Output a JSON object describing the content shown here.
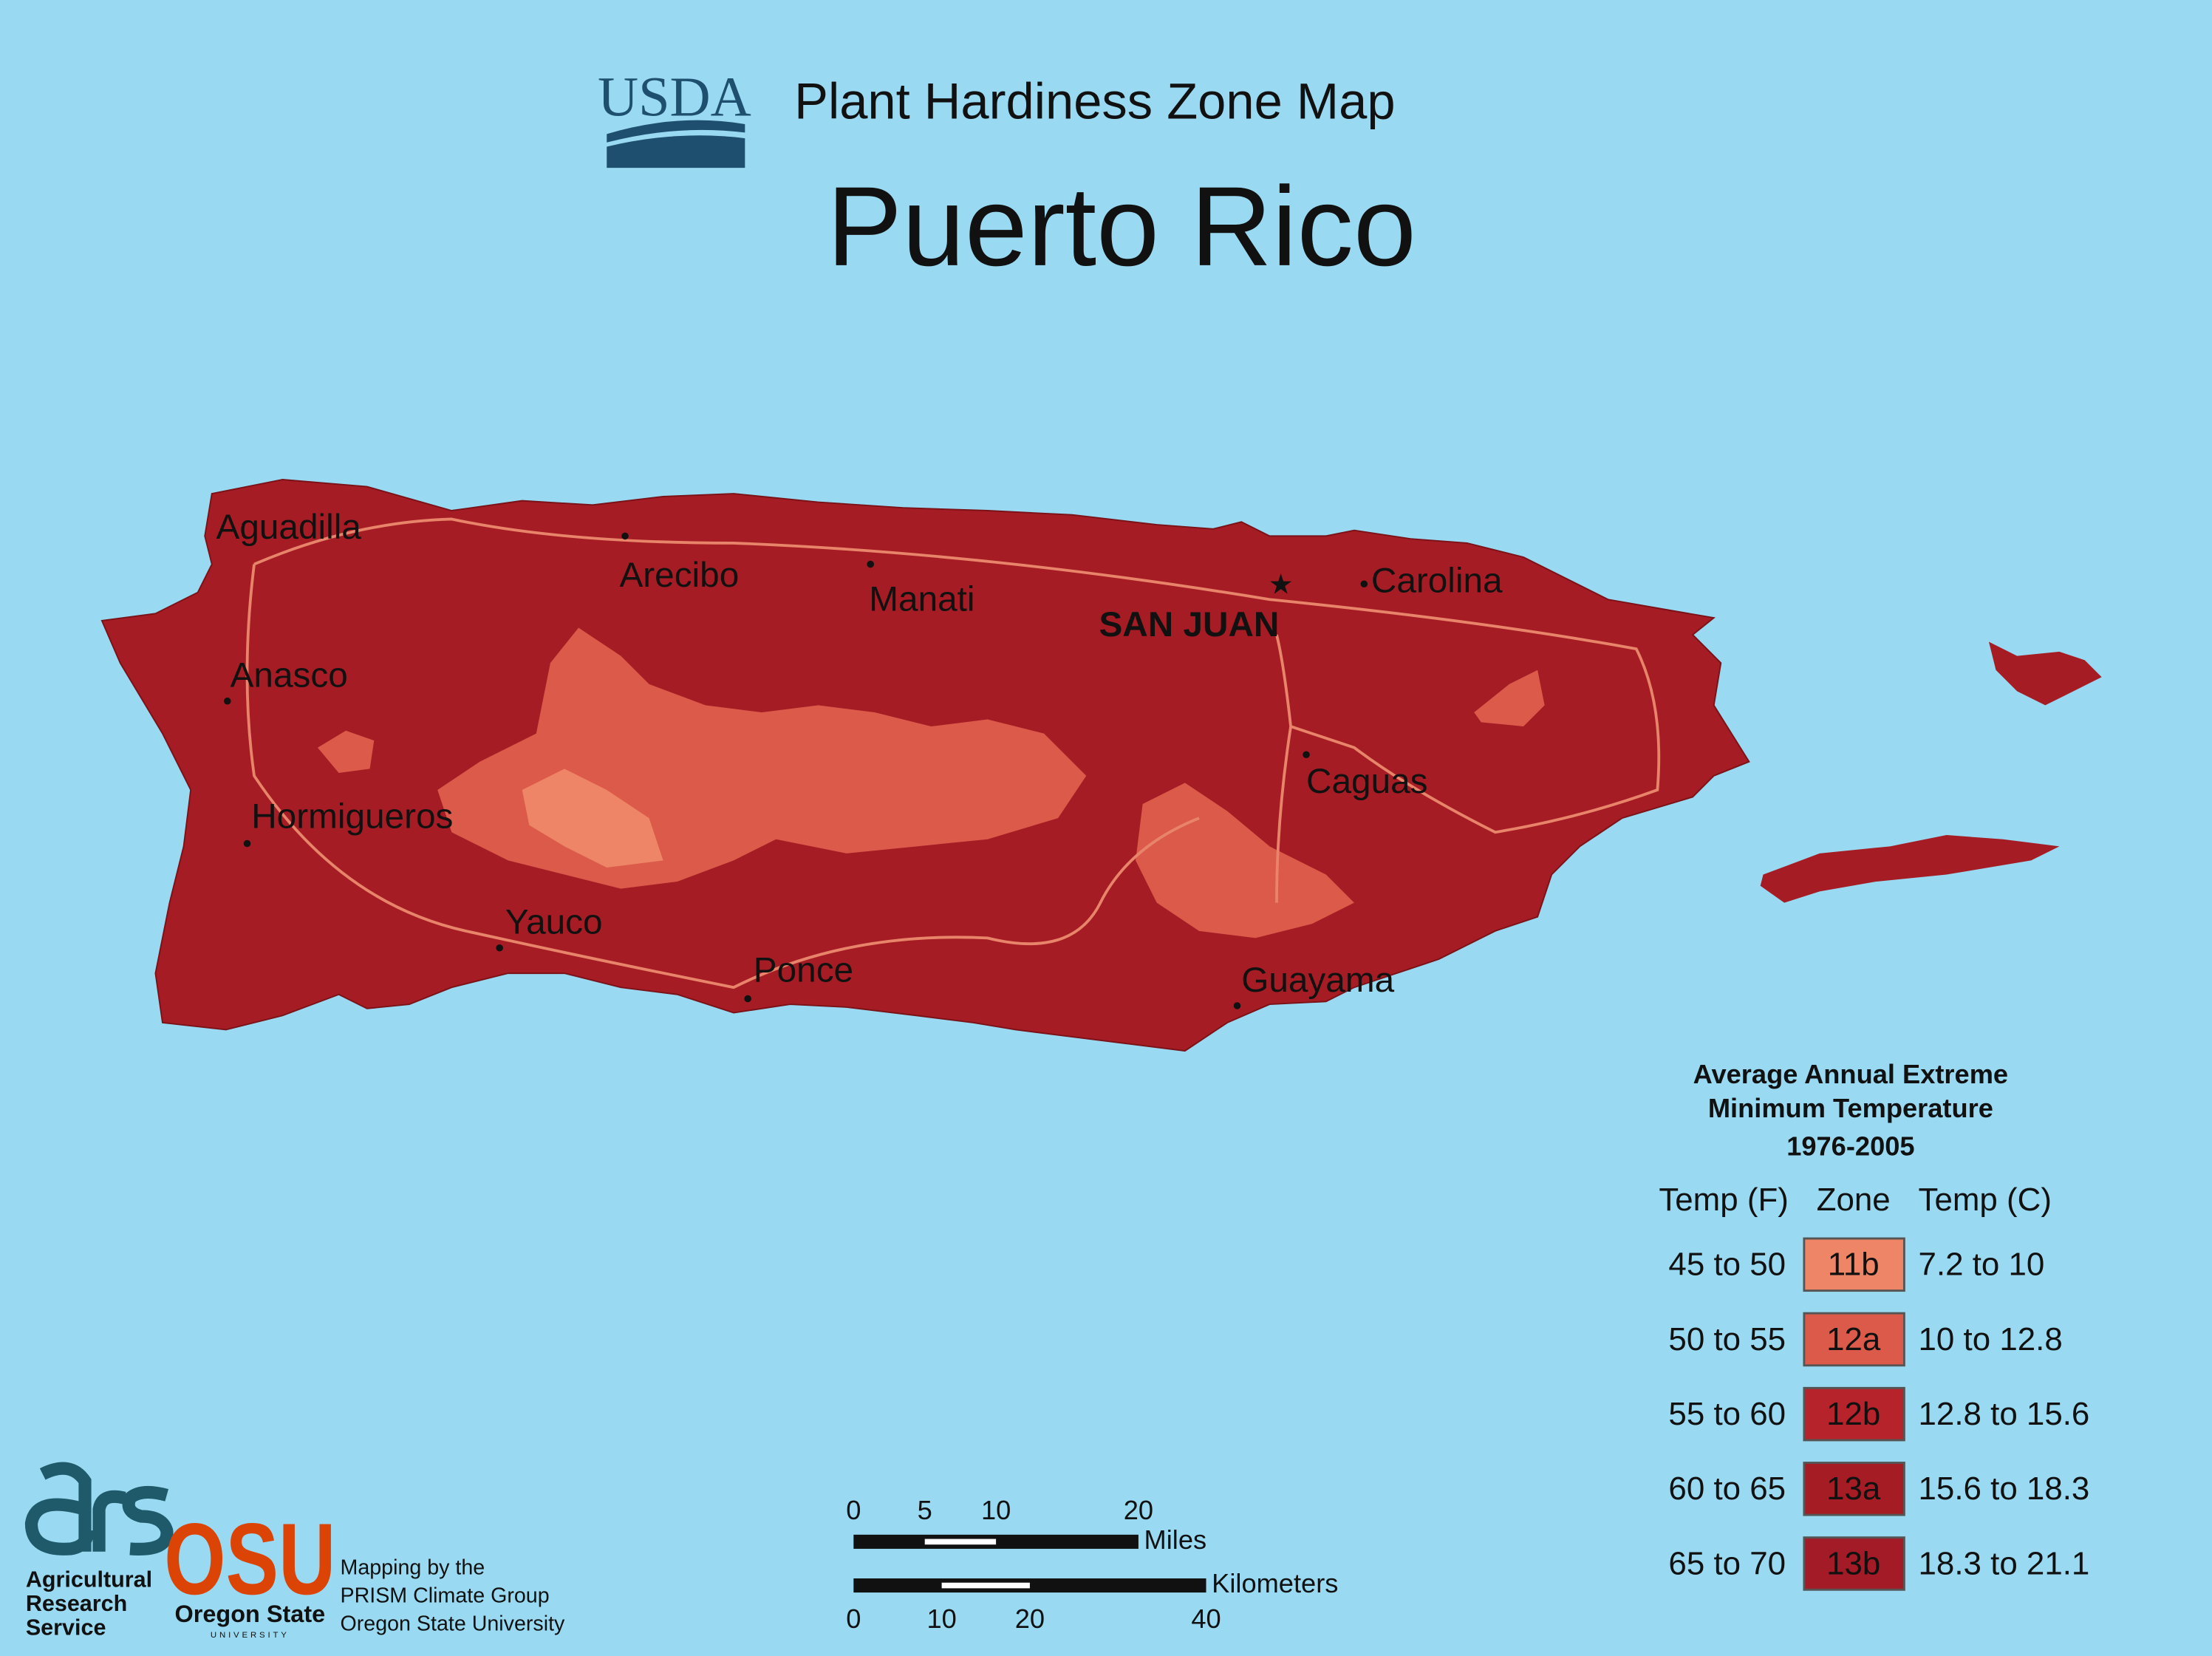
{
  "header": {
    "agency": "USDA",
    "title": "Plant Hardiness Zone Map",
    "region": "Puerto Rico"
  },
  "map": {
    "capital": "SAN JUAN",
    "cities": [
      "Aguadilla",
      "Arecibo",
      "Manati",
      "Carolina",
      "Anasco",
      "Caguas",
      "Hormigueros",
      "Yauco",
      "Ponce",
      "Guayama"
    ]
  },
  "legend": {
    "title": [
      "Average Annual Extreme",
      "Minimum Temperature",
      "1976-2005"
    ],
    "columns": [
      "Temp (F)",
      "Zone",
      "Temp (C)"
    ],
    "rows": [
      {
        "temp_f": "45 to 50",
        "zone": "11b",
        "temp_c": "7.2 to 10",
        "color": "#ed8566"
      },
      {
        "temp_f": "50 to 55",
        "zone": "12a",
        "temp_c": "10 to 12.8",
        "color": "#dc5a4a"
      },
      {
        "temp_f": "55 to 60",
        "zone": "12b",
        "temp_c": "12.8 to 15.6",
        "color": "#b6232a"
      },
      {
        "temp_f": "60 to 65",
        "zone": "13a",
        "temp_c": "15.6 to 18.3",
        "color": "#a51c24"
      },
      {
        "temp_f": "65 to 70",
        "zone": "13b",
        "temp_c": "18.3 to 21.1",
        "color": "#a21b26"
      }
    ]
  },
  "scale_bar": {
    "miles": {
      "ticks": [
        0,
        5,
        10,
        20
      ],
      "unit": "Miles"
    },
    "kilometers": {
      "ticks": [
        0,
        10,
        20,
        40
      ],
      "unit": "Kilometers"
    }
  },
  "footer": {
    "ars": [
      "Agricultural",
      "Research",
      "Service"
    ],
    "osu": "OSU",
    "osu_name": "Oregon State",
    "osu_sub": "UNIVERSITY",
    "credits": [
      "Mapping by the",
      "PRISM Climate Group",
      "Oregon State University"
    ]
  }
}
